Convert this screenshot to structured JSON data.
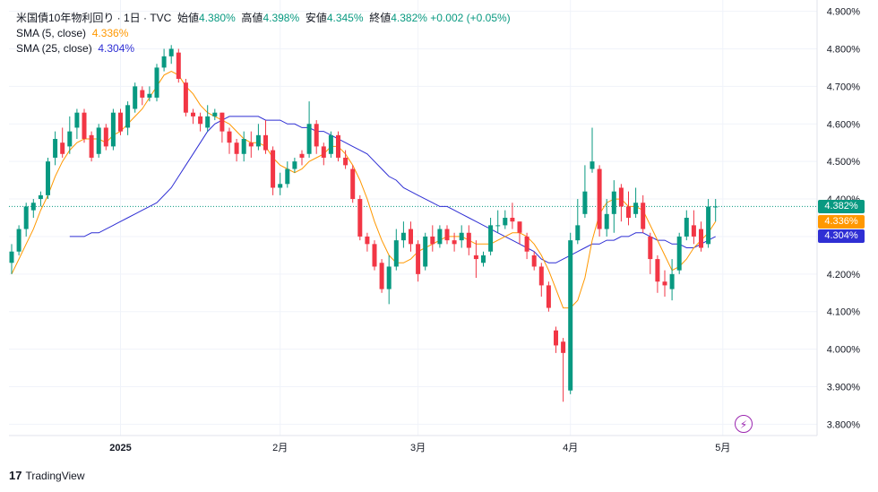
{
  "legend": {
    "symbol": "米国債10年物利回り · 1日 · TVC",
    "open_label": "始値",
    "open_value": "4.380%",
    "high_label": "高値",
    "high_value": "4.398%",
    "low_label": "安値",
    "low_value": "4.345%",
    "close_label": "終値",
    "close_value": "4.382%",
    "change": "+0.002 (+0.05%)",
    "sma5_label": "SMA (5, close)",
    "sma5_value": "4.336%",
    "sma25_label": "SMA (25, close)",
    "sma25_value": "4.304%"
  },
  "badges": {
    "last": "4.382%",
    "sma5": "4.336%",
    "sma25": "4.304%"
  },
  "footer": {
    "brand": "TradingView",
    "logo": "17"
  },
  "colors": {
    "up": "#089981",
    "down": "#f23645",
    "sma5": "#ff9800",
    "sma25": "#2f2fd4",
    "grid": "#f0f3fa"
  },
  "icons": {
    "bolt": "lightning-bolt-icon"
  },
  "chart_data": {
    "type": "candlestick",
    "y_ticks": [
      "4.900%",
      "4.800%",
      "4.700%",
      "4.600%",
      "4.500%",
      "4.400%",
      "4.300%",
      "4.200%",
      "4.100%",
      "4.000%",
      "3.900%",
      "3.800%"
    ],
    "ylim": [
      3.77,
      4.93
    ],
    "x_labels": [
      {
        "label": "2025",
        "index": 15
      },
      {
        "label": "2月",
        "index": 37
      },
      {
        "label": "3月",
        "index": 56
      },
      {
        "label": "4月",
        "index": 77
      },
      {
        "label": "5月",
        "index": 98
      }
    ],
    "candles": [
      [
        4.23,
        4.26,
        4.2,
        4.28
      ],
      [
        4.26,
        4.32,
        4.25,
        4.33
      ],
      [
        4.32,
        4.38,
        4.3,
        4.39
      ],
      [
        4.37,
        4.39,
        4.35,
        4.4
      ],
      [
        4.4,
        4.41,
        4.38,
        4.42
      ],
      [
        4.41,
        4.5,
        4.4,
        4.51
      ],
      [
        4.51,
        4.56,
        4.49,
        4.58
      ],
      [
        4.55,
        4.52,
        4.51,
        4.59
      ],
      [
        4.54,
        4.58,
        4.52,
        4.62
      ],
      [
        4.59,
        4.63,
        4.56,
        4.64
      ],
      [
        4.63,
        4.56,
        4.55,
        4.64
      ],
      [
        4.57,
        4.51,
        4.5,
        4.58
      ],
      [
        4.52,
        4.59,
        4.51,
        4.6
      ],
      [
        4.59,
        4.54,
        4.53,
        4.6
      ],
      [
        4.54,
        4.63,
        4.53,
        4.64
      ],
      [
        4.63,
        4.58,
        4.57,
        4.64
      ],
      [
        4.59,
        4.65,
        4.57,
        4.66
      ],
      [
        4.64,
        4.7,
        4.63,
        4.71
      ],
      [
        4.69,
        4.67,
        4.65,
        4.7
      ],
      [
        4.67,
        4.68,
        4.66,
        4.7
      ],
      [
        4.67,
        4.75,
        4.66,
        4.76
      ],
      [
        4.75,
        4.78,
        4.74,
        4.8
      ],
      [
        4.78,
        4.8,
        4.76,
        4.81
      ],
      [
        4.79,
        4.72,
        4.71,
        4.8
      ],
      [
        4.71,
        4.63,
        4.62,
        4.72
      ],
      [
        4.63,
        4.62,
        4.6,
        4.64
      ],
      [
        4.62,
        4.6,
        4.58,
        4.63
      ],
      [
        4.59,
        4.62,
        4.58,
        4.65
      ],
      [
        4.62,
        4.63,
        4.61,
        4.64
      ],
      [
        4.63,
        4.58,
        4.55,
        4.63
      ],
      [
        4.58,
        4.55,
        4.52,
        4.59
      ],
      [
        4.55,
        4.52,
        4.5,
        4.56
      ],
      [
        4.52,
        4.56,
        4.5,
        4.58
      ],
      [
        4.55,
        4.54,
        4.51,
        4.58
      ],
      [
        4.54,
        4.57,
        4.53,
        4.6
      ],
      [
        4.57,
        4.53,
        4.52,
        4.61
      ],
      [
        4.53,
        4.43,
        4.41,
        4.54
      ],
      [
        4.43,
        4.44,
        4.41,
        4.47
      ],
      [
        4.44,
        4.48,
        4.43,
        4.5
      ],
      [
        4.48,
        4.5,
        4.47,
        4.51
      ],
      [
        4.52,
        4.51,
        4.49,
        4.53
      ],
      [
        4.52,
        4.6,
        4.51,
        4.66
      ],
      [
        4.6,
        4.54,
        4.52,
        4.61
      ],
      [
        4.54,
        4.51,
        4.49,
        4.55
      ],
      [
        4.52,
        4.57,
        4.51,
        4.58
      ],
      [
        4.57,
        4.51,
        4.5,
        4.58
      ],
      [
        4.51,
        4.49,
        4.48,
        4.53
      ],
      [
        4.48,
        4.4,
        4.39,
        4.49
      ],
      [
        4.4,
        4.3,
        4.29,
        4.41
      ],
      [
        4.3,
        4.28,
        4.26,
        4.31
      ],
      [
        4.28,
        4.22,
        4.21,
        4.29
      ],
      [
        4.23,
        4.16,
        4.15,
        4.24
      ],
      [
        4.16,
        4.22,
        4.12,
        4.25
      ],
      [
        4.22,
        4.29,
        4.21,
        4.32
      ],
      [
        4.29,
        4.31,
        4.27,
        4.34
      ],
      [
        4.32,
        4.28,
        4.26,
        4.34
      ],
      [
        4.28,
        4.2,
        4.18,
        4.29
      ],
      [
        4.22,
        4.3,
        4.21,
        4.31
      ],
      [
        4.3,
        4.28,
        4.26,
        4.33
      ],
      [
        4.28,
        4.32,
        4.27,
        4.33
      ],
      [
        4.32,
        4.29,
        4.28,
        4.33
      ],
      [
        4.29,
        4.28,
        4.26,
        4.31
      ],
      [
        4.29,
        4.31,
        4.27,
        4.33
      ],
      [
        4.31,
        4.27,
        4.25,
        4.33
      ],
      [
        4.25,
        4.24,
        4.19,
        4.29
      ],
      [
        4.23,
        4.25,
        4.22,
        4.26
      ],
      [
        4.26,
        4.33,
        4.25,
        4.35
      ],
      [
        4.33,
        4.33,
        4.31,
        4.37
      ],
      [
        4.33,
        4.35,
        4.32,
        4.37
      ],
      [
        4.35,
        4.34,
        4.32,
        4.39
      ],
      [
        4.34,
        4.31,
        4.28,
        4.34
      ],
      [
        4.3,
        4.26,
        4.24,
        4.31
      ],
      [
        4.25,
        4.22,
        4.21,
        4.26
      ],
      [
        4.22,
        4.17,
        4.14,
        4.23
      ],
      [
        4.17,
        4.11,
        4.1,
        4.18
      ],
      [
        4.05,
        4.01,
        3.99,
        4.06
      ],
      [
        4.02,
        3.99,
        3.86,
        4.03
      ],
      [
        3.89,
        4.29,
        3.88,
        4.31
      ],
      [
        4.29,
        4.33,
        4.28,
        4.4
      ],
      [
        4.36,
        4.42,
        4.35,
        4.49
      ],
      [
        4.48,
        4.5,
        4.47,
        4.59
      ],
      [
        4.48,
        4.32,
        4.3,
        4.49
      ],
      [
        4.32,
        4.36,
        4.3,
        4.4
      ],
      [
        4.36,
        4.42,
        4.31,
        4.45
      ],
      [
        4.43,
        4.38,
        4.34,
        4.44
      ],
      [
        4.38,
        4.35,
        4.33,
        4.42
      ],
      [
        4.36,
        4.39,
        4.35,
        4.43
      ],
      [
        4.39,
        4.32,
        4.31,
        4.41
      ],
      [
        4.3,
        4.24,
        4.2,
        4.31
      ],
      [
        4.24,
        4.18,
        4.15,
        4.25
      ],
      [
        4.18,
        4.17,
        4.14,
        4.21
      ],
      [
        4.16,
        4.2,
        4.13,
        4.24
      ],
      [
        4.21,
        4.3,
        4.2,
        4.31
      ],
      [
        4.3,
        4.35,
        4.29,
        4.37
      ],
      [
        4.33,
        4.3,
        4.28,
        4.37
      ],
      [
        4.32,
        4.27,
        4.26,
        4.34
      ],
      [
        4.28,
        4.38,
        4.27,
        4.4
      ],
      [
        4.38,
        4.38,
        4.34,
        4.4
      ]
    ],
    "sma5": [
      4.2,
      4.24,
      4.28,
      4.32,
      4.37,
      4.41,
      4.46,
      4.5,
      4.53,
      4.55,
      4.56,
      4.56,
      4.56,
      4.55,
      4.57,
      4.58,
      4.6,
      4.62,
      4.64,
      4.67,
      4.7,
      4.73,
      4.74,
      4.73,
      4.7,
      4.68,
      4.65,
      4.63,
      4.62,
      4.61,
      4.6,
      4.58,
      4.56,
      4.55,
      4.55,
      4.54,
      4.51,
      4.49,
      4.48,
      4.47,
      4.48,
      4.5,
      4.51,
      4.52,
      4.54,
      4.54,
      4.52,
      4.49,
      4.45,
      4.4,
      4.34,
      4.29,
      4.25,
      4.23,
      4.23,
      4.24,
      4.26,
      4.27,
      4.28,
      4.29,
      4.3,
      4.3,
      4.3,
      4.29,
      4.28,
      4.28,
      4.28,
      4.29,
      4.3,
      4.31,
      4.31,
      4.3,
      4.28,
      4.25,
      4.21,
      4.16,
      4.11,
      4.11,
      4.13,
      4.19,
      4.29,
      4.36,
      4.39,
      4.4,
      4.4,
      4.38,
      4.38,
      4.37,
      4.33,
      4.29,
      4.25,
      4.21,
      4.22,
      4.24,
      4.27,
      4.29,
      4.31,
      4.34
    ],
    "sma25": [
      4.3,
      4.3,
      4.3,
      4.31,
      4.31,
      4.32,
      4.33,
      4.34,
      4.35,
      4.36,
      4.37,
      4.38,
      4.39,
      4.41,
      4.43,
      4.46,
      4.49,
      4.52,
      4.55,
      4.58,
      4.6,
      4.61,
      4.62,
      4.62,
      4.62,
      4.62,
      4.62,
      4.61,
      4.61,
      4.61,
      4.6,
      4.6,
      4.59,
      4.59,
      4.58,
      4.58,
      4.57,
      4.56,
      4.55,
      4.54,
      4.53,
      4.52,
      4.5,
      4.48,
      4.46,
      4.45,
      4.43,
      4.42,
      4.41,
      4.4,
      4.39,
      4.38,
      4.38,
      4.37,
      4.36,
      4.35,
      4.34,
      4.33,
      4.32,
      4.31,
      4.3,
      4.29,
      4.28,
      4.27,
      4.26,
      4.24,
      4.23,
      4.23,
      4.24,
      4.25,
      4.26,
      4.27,
      4.28,
      4.28,
      4.29,
      4.29,
      4.3,
      4.3,
      4.31,
      4.31,
      4.3,
      4.29,
      4.29,
      4.28,
      4.28,
      4.27,
      4.27,
      4.28,
      4.29,
      4.3
    ]
  }
}
